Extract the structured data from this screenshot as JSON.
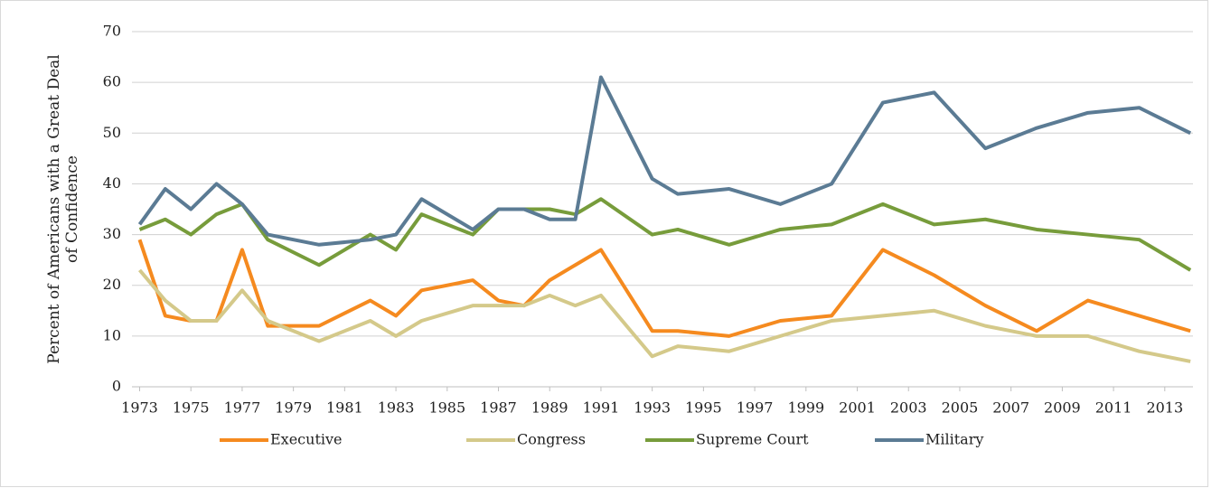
{
  "chart_data": {
    "type": "line",
    "ylabel": [
      "Percent of Americans with a Great Deal",
      "of Confidence"
    ],
    "x": [
      1973,
      1974,
      1975,
      1976,
      1977,
      1978,
      1980,
      1982,
      1983,
      1984,
      1986,
      1987,
      1988,
      1989,
      1990,
      1991,
      1993,
      1994,
      1996,
      1998,
      2000,
      2002,
      2004,
      2006,
      2008,
      2010,
      2012,
      2014
    ],
    "series": [
      {
        "name": "Executive",
        "color": "#f58a1f",
        "values": [
          29,
          14,
          13,
          13,
          27,
          12,
          12,
          17,
          14,
          19,
          21,
          17,
          16,
          21,
          24,
          27,
          11,
          11,
          10,
          13,
          14,
          27,
          22,
          16,
          11,
          17,
          14,
          11
        ]
      },
      {
        "name": "Congress",
        "color": "#d4c98a",
        "values": [
          23,
          17,
          13,
          13,
          19,
          13,
          9,
          13,
          10,
          13,
          16,
          16,
          16,
          18,
          16,
          18,
          6,
          8,
          7,
          10,
          13,
          14,
          15,
          12,
          10,
          10,
          7,
          5
        ]
      },
      {
        "name": "Supreme Court",
        "color": "#779c3b",
        "values": [
          31,
          33,
          30,
          34,
          36,
          29,
          24,
          30,
          27,
          34,
          30,
          35,
          35,
          35,
          34,
          37,
          30,
          31,
          28,
          31,
          32,
          36,
          32,
          33,
          31,
          30,
          29,
          23
        ]
      },
      {
        "name": "Military",
        "color": "#5b7b94",
        "values": [
          32,
          39,
          35,
          40,
          36,
          30,
          28,
          29,
          30,
          37,
          31,
          35,
          35,
          33,
          33,
          61,
          41,
          38,
          39,
          36,
          40,
          56,
          58,
          47,
          51,
          54,
          55,
          50
        ]
      }
    ],
    "xlim": [
      1972.7,
      2014.1
    ],
    "xticks": [
      1973,
      1975,
      1977,
      1979,
      1981,
      1983,
      1985,
      1987,
      1989,
      1991,
      1993,
      1995,
      1997,
      1999,
      2001,
      2003,
      2005,
      2007,
      2009,
      2011,
      2013
    ],
    "ylim": [
      0,
      70
    ],
    "yticks": [
      0,
      10,
      20,
      30,
      40,
      50,
      60,
      70
    ],
    "grid": true,
    "legend": "bottom"
  }
}
